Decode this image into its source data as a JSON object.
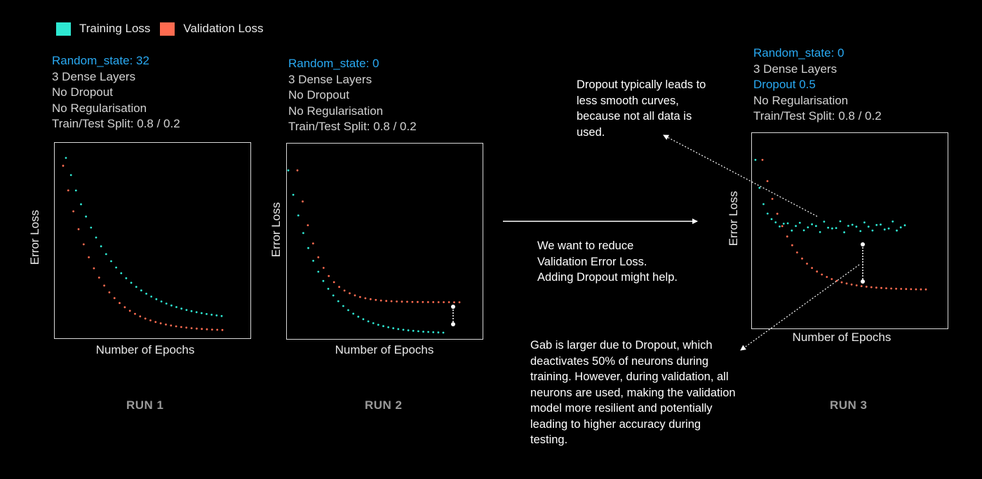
{
  "legend": {
    "training": {
      "label": "Training Loss",
      "color": "#2ee8d2"
    },
    "validation": {
      "label": "Validation Loss",
      "color": "#ff6b50"
    }
  },
  "runs": [
    {
      "config": [
        "Random_state: 32",
        "3 Dense Layers",
        "No Dropout",
        "No Regularisation",
        "Train/Test Split: 0.8 / 0.2"
      ],
      "highlight": [
        0
      ],
      "ylabel": "Error Loss",
      "xlabel": "Number of Epochs",
      "run_label": "RUN 1"
    },
    {
      "config": [
        "Random_state: 0",
        "3 Dense Layers",
        "No Dropout",
        "No Regularisation",
        "Train/Test Split: 0.8 / 0.2"
      ],
      "highlight": [
        0
      ],
      "ylabel": "Error Loss",
      "xlabel": "Number of Epochs",
      "run_label": "RUN 2"
    },
    {
      "config": [
        "Random_state: 0",
        "3 Dense Layers",
        "Dropout 0.5",
        "No Regularisation",
        "Train/Test Split: 0.8 / 0.2"
      ],
      "highlight": [
        0,
        2
      ],
      "ylabel": "Error Loss",
      "xlabel": "Number of Epochs",
      "run_label": "RUN 3"
    }
  ],
  "notes": {
    "reduce": "We want to reduce Validation Error Loss. Adding Dropout might help.",
    "dropout_smooth": "Dropout typically leads to less smooth curves, because not all data is used.",
    "gap": "Gab is larger due to Dropout, which deactivates 50% of neurons during training. However, during validation, all neurons are used, making the validation model more resilient and potentially leading to higher accuracy during testing."
  },
  "chart_data": [
    {
      "type": "scatter",
      "title": "RUN 1",
      "xlabel": "Number of Epochs",
      "ylabel": "Error Loss",
      "grid": false,
      "legend": "top-left",
      "series": [
        {
          "name": "Training Loss",
          "color": "#2ee8d2",
          "start": 0.92,
          "floor": 0.09,
          "decay": 0.29,
          "noise": 0
        },
        {
          "name": "Validation Loss",
          "color": "#ff6b50",
          "start": 0.88,
          "floor": 0.04,
          "decay": 0.2,
          "noise": 0
        }
      ]
    },
    {
      "type": "scatter",
      "title": "RUN 2",
      "xlabel": "Number of Epochs",
      "ylabel": "Error Loss",
      "grid": false,
      "legend": "top-left",
      "series": [
        {
          "name": "Training Loss",
          "color": "#2ee8d2",
          "start": 0.86,
          "floor": 0.03,
          "decay": 0.2,
          "noise": 0
        },
        {
          "name": "Validation Loss",
          "color": "#ff6b50",
          "start": 0.86,
          "floor": 0.19,
          "decay": 0.12,
          "noise": 0
        }
      ]
    },
    {
      "type": "scatter",
      "title": "RUN 3",
      "xlabel": "Number of Epochs",
      "ylabel": "Error Loss",
      "grid": false,
      "legend": "top-left",
      "series": [
        {
          "name": "Training Loss",
          "color": "#2ee8d2",
          "start": 0.86,
          "floor": 0.52,
          "decay": 0.05,
          "noise": 0.02
        },
        {
          "name": "Validation Loss",
          "color": "#ff6b50",
          "start": 0.86,
          "floor": 0.2,
          "decay": 0.17,
          "noise": 0
        }
      ]
    }
  ]
}
